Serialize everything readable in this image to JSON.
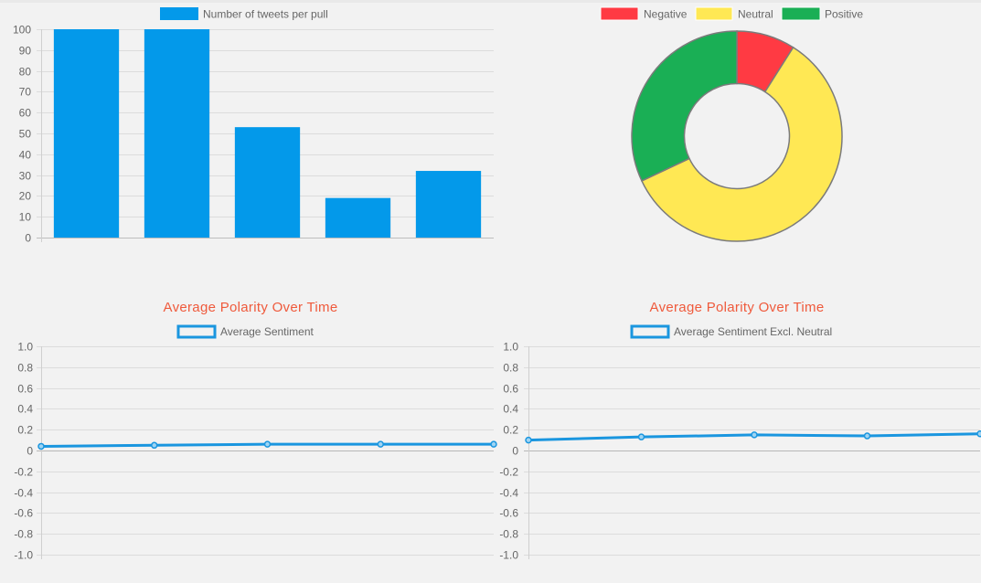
{
  "colors": {
    "bar": "#0399ea",
    "line": "#1a96df",
    "negative": "#ff3a43",
    "neutral": "#ffe854",
    "positive": "#1aaf55",
    "title": "#ef5a3c"
  },
  "chart_data": [
    {
      "type": "bar",
      "legend": [
        "Number of tweets per pull"
      ],
      "series": [
        {
          "name": "Number of tweets per pull",
          "values": [
            100,
            100,
            53,
            19,
            32
          ]
        }
      ],
      "categories": [
        "",
        "",
        "",
        "",
        ""
      ],
      "ylim": [
        0,
        100
      ],
      "yticks": [
        "0",
        "10",
        "20",
        "30",
        "40",
        "50",
        "60",
        "70",
        "80",
        "90",
        "100"
      ],
      "grid": true,
      "legend_position": "top"
    },
    {
      "type": "pie",
      "donut": true,
      "legend_position": "top",
      "labels": [
        "Negative",
        "Neutral",
        "Positive"
      ],
      "values": [
        9,
        59,
        32
      ]
    },
    {
      "type": "line",
      "title": "Average Polarity Over Time",
      "legend_position": "top",
      "series": [
        {
          "name": "Average Sentiment",
          "values": [
            0.04,
            0.05,
            0.06,
            0.06,
            0.06
          ]
        }
      ],
      "ylim": [
        -1.0,
        1.0
      ],
      "yticks": [
        "1.0",
        "0.8",
        "0.6",
        "0.4",
        "0.2",
        "0",
        "-0.2",
        "-0.4",
        "-0.6",
        "-0.8",
        "-1.0"
      ],
      "grid": true
    },
    {
      "type": "line",
      "title": "Average Polarity Over Time",
      "legend_position": "top",
      "series": [
        {
          "name": "Average Sentiment Excl. Neutral",
          "values": [
            0.1,
            0.13,
            0.15,
            0.14,
            0.16
          ]
        }
      ],
      "ylim": [
        -1.0,
        1.0
      ],
      "yticks": [
        "1.0",
        "0.8",
        "0.6",
        "0.4",
        "0.2",
        "0",
        "-0.2",
        "-0.4",
        "-0.6",
        "-0.8",
        "-1.0"
      ],
      "grid": true
    }
  ]
}
